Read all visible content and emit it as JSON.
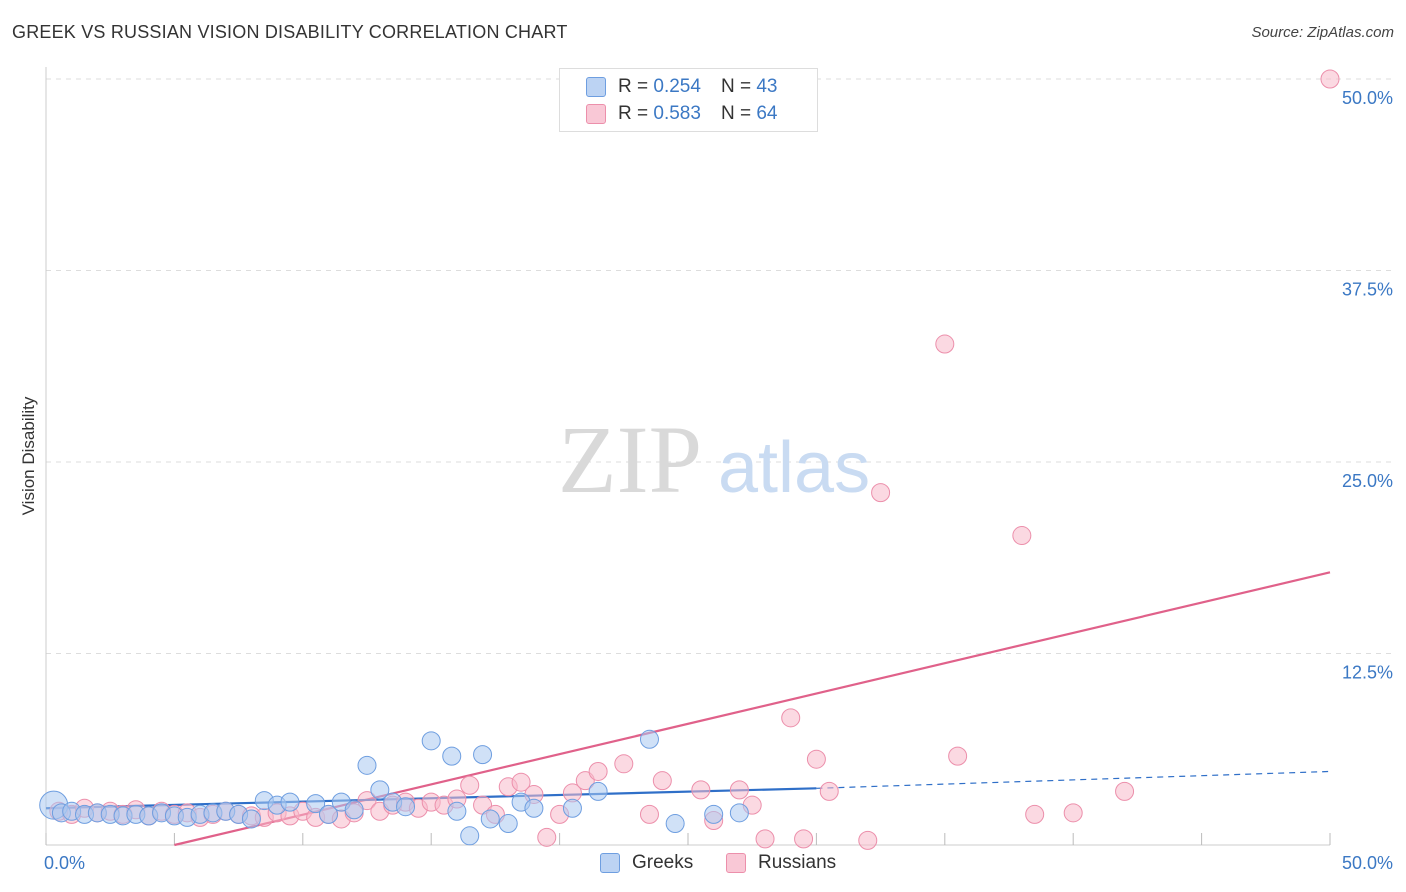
{
  "title": "GREEK VS RUSSIAN VISION DISABILITY CORRELATION CHART",
  "source": "Source: ZipAtlas.com",
  "watermark": {
    "zip": "ZIP",
    "atlas": "atlas"
  },
  "legend_stats": [
    {
      "r_label": "R =",
      "r_value": "0.254",
      "n_label": "N =",
      "n_value": "43"
    },
    {
      "r_label": "R =",
      "r_value": "0.583",
      "n_label": "N =",
      "n_value": "64"
    }
  ],
  "colors": {
    "greeks_fill": "#a9c8f0",
    "greeks_stroke": "#6e9ee0",
    "greeks_line": "#2f6fc8",
    "russians_fill": "#f7b9cb",
    "russians_stroke": "#ec8fab",
    "russians_line": "#e0618a",
    "tick_label": "#3b78c4",
    "grid": "#dddddd"
  },
  "chart_data": {
    "type": "scatter",
    "title": "GREEK VS RUSSIAN VISION DISABILITY CORRELATION CHART",
    "xlabel": "",
    "ylabel": "Vision Disability",
    "xlim": [
      0,
      50
    ],
    "ylim": [
      0,
      50
    ],
    "x_tick_labels": [
      "0.0%",
      "50.0%"
    ],
    "y_ticks": [
      12.5,
      25.0,
      37.5,
      50.0
    ],
    "y_tick_labels": [
      "12.5%",
      "25.0%",
      "37.5%",
      "50.0%"
    ],
    "grid": true,
    "legend_position": "bottom-center",
    "series": [
      {
        "name": "Greeks",
        "trend": {
          "x": [
            0.0,
            30.0
          ],
          "y": [
            2.4,
            3.7
          ],
          "extended_x": [
            30.0,
            50.0
          ],
          "extended_y": [
            3.7,
            4.8
          ]
        },
        "points": [
          [
            0.3,
            2.6
          ],
          [
            0.6,
            2.1
          ],
          [
            1.0,
            2.2
          ],
          [
            1.5,
            2.0
          ],
          [
            2.0,
            2.1
          ],
          [
            2.5,
            2.0
          ],
          [
            3.0,
            1.9
          ],
          [
            3.5,
            2.0
          ],
          [
            4.0,
            1.9
          ],
          [
            4.5,
            2.1
          ],
          [
            5.0,
            1.9
          ],
          [
            5.5,
            1.8
          ],
          [
            6.0,
            2.0
          ],
          [
            6.5,
            2.1
          ],
          [
            7.0,
            2.2
          ],
          [
            7.5,
            2.0
          ],
          [
            8.0,
            1.7
          ],
          [
            8.5,
            2.9
          ],
          [
            9.0,
            2.6
          ],
          [
            9.5,
            2.8
          ],
          [
            10.5,
            2.7
          ],
          [
            11.0,
            2.0
          ],
          [
            11.5,
            2.8
          ],
          [
            12.0,
            2.3
          ],
          [
            12.5,
            5.2
          ],
          [
            13.0,
            3.6
          ],
          [
            13.5,
            2.8
          ],
          [
            14.0,
            2.5
          ],
          [
            15.0,
            6.8
          ],
          [
            15.8,
            5.8
          ],
          [
            16.0,
            2.2
          ],
          [
            16.5,
            0.6
          ],
          [
            17.0,
            5.9
          ],
          [
            17.3,
            1.7
          ],
          [
            18.0,
            1.4
          ],
          [
            18.5,
            2.8
          ],
          [
            19.0,
            2.4
          ],
          [
            20.5,
            2.4
          ],
          [
            21.5,
            3.5
          ],
          [
            23.5,
            6.9
          ],
          [
            24.5,
            1.4
          ],
          [
            26.0,
            2.0
          ],
          [
            27.0,
            2.1
          ]
        ]
      },
      {
        "name": "Russians",
        "trend": {
          "x": [
            5.0,
            50.0
          ],
          "y": [
            0.0,
            17.8
          ]
        },
        "points": [
          [
            0.5,
            2.2
          ],
          [
            1.0,
            2.0
          ],
          [
            1.5,
            2.4
          ],
          [
            2.0,
            2.1
          ],
          [
            2.5,
            2.2
          ],
          [
            3.0,
            2.0
          ],
          [
            3.5,
            2.3
          ],
          [
            4.0,
            1.9
          ],
          [
            4.5,
            2.2
          ],
          [
            5.0,
            2.0
          ],
          [
            5.5,
            2.1
          ],
          [
            6.0,
            1.8
          ],
          [
            6.5,
            2.0
          ],
          [
            7.0,
            2.2
          ],
          [
            7.5,
            2.0
          ],
          [
            8.0,
            1.9
          ],
          [
            8.5,
            1.8
          ],
          [
            9.0,
            2.1
          ],
          [
            9.5,
            1.9
          ],
          [
            10.0,
            2.2
          ],
          [
            10.5,
            1.8
          ],
          [
            11.0,
            2.0
          ],
          [
            11.5,
            1.7
          ],
          [
            12.0,
            2.1
          ],
          [
            12.5,
            2.9
          ],
          [
            13.0,
            2.2
          ],
          [
            13.5,
            2.6
          ],
          [
            14.0,
            2.8
          ],
          [
            14.5,
            2.4
          ],
          [
            15.0,
            2.8
          ],
          [
            15.5,
            2.6
          ],
          [
            16.0,
            3.0
          ],
          [
            16.5,
            3.9
          ],
          [
            17.0,
            2.6
          ],
          [
            17.5,
            2.0
          ],
          [
            18.0,
            3.8
          ],
          [
            18.5,
            4.1
          ],
          [
            19.0,
            3.3
          ],
          [
            19.5,
            0.5
          ],
          [
            20.0,
            2.0
          ],
          [
            20.5,
            3.4
          ],
          [
            21.0,
            4.2
          ],
          [
            21.5,
            4.8
          ],
          [
            22.5,
            5.3
          ],
          [
            23.5,
            2.0
          ],
          [
            24.0,
            4.2
          ],
          [
            25.5,
            3.6
          ],
          [
            26.0,
            1.6
          ],
          [
            27.0,
            3.6
          ],
          [
            27.5,
            2.6
          ],
          [
            28.0,
            0.4
          ],
          [
            29.0,
            8.3
          ],
          [
            29.5,
            0.4
          ],
          [
            30.0,
            5.6
          ],
          [
            30.5,
            3.5
          ],
          [
            32.0,
            0.3
          ],
          [
            32.5,
            23.0
          ],
          [
            35.0,
            32.7
          ],
          [
            35.5,
            5.8
          ],
          [
            38.0,
            20.2
          ],
          [
            38.5,
            2.0
          ],
          [
            40.0,
            2.1
          ],
          [
            42.0,
            3.5
          ],
          [
            50.0,
            50.0
          ]
        ]
      }
    ]
  },
  "bottom_legend": [
    {
      "label": "Greeks"
    },
    {
      "label": "Russians"
    }
  ]
}
